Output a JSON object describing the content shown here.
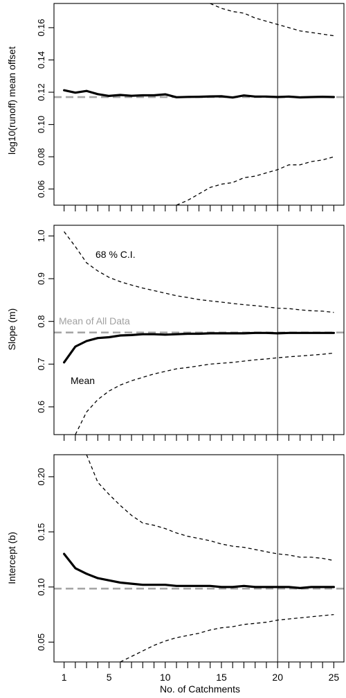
{
  "chart_data": [
    {
      "type": "line",
      "ylabel": "log10(runoff) mean offset",
      "ylim": [
        0.05,
        0.175
      ],
      "yticks": [
        0.06,
        0.08,
        0.1,
        0.12,
        0.14,
        0.16
      ],
      "ytick_labels": [
        "0.06",
        "0.08",
        "0.10",
        "0.12",
        "0.14",
        "0.16"
      ],
      "reference_value": 0.117,
      "vline_x": 20,
      "series": [
        {
          "role": "mean",
          "style": "solid-thick",
          "x": [
            1,
            2,
            3,
            4,
            5,
            6,
            7,
            8,
            9,
            10,
            11,
            12,
            13,
            14,
            15,
            16,
            17,
            18,
            19,
            20,
            21,
            22,
            23,
            24,
            25
          ],
          "y": [
            0.1212,
            0.1197,
            0.1208,
            0.1188,
            0.1177,
            0.1183,
            0.1178,
            0.1181,
            0.1181,
            0.1187,
            0.1169,
            0.1171,
            0.1172,
            0.1174,
            0.1175,
            0.1167,
            0.118,
            0.1173,
            0.1173,
            0.117,
            0.1173,
            0.1168,
            0.117,
            0.1172,
            0.117
          ]
        },
        {
          "role": "upper",
          "style": "dashed",
          "x": [
            14,
            15,
            16,
            17,
            18,
            19,
            20,
            21,
            22,
            23,
            24,
            25
          ],
          "y": [
            0.175,
            0.172,
            0.17,
            0.169,
            0.166,
            0.164,
            0.162,
            0.16,
            0.158,
            0.157,
            0.156,
            0.155
          ]
        },
        {
          "role": "lower",
          "style": "dashed",
          "x": [
            11,
            12,
            13,
            14,
            15,
            16,
            17,
            18,
            19,
            20,
            21,
            22,
            23,
            24,
            25
          ],
          "y": [
            0.05,
            0.053,
            0.057,
            0.061,
            0.063,
            0.064,
            0.067,
            0.068,
            0.07,
            0.072,
            0.075,
            0.075,
            0.077,
            0.078,
            0.08
          ]
        }
      ]
    },
    {
      "type": "line",
      "ylabel": "Slope (m)",
      "ylim": [
        0.535,
        1.025
      ],
      "yticks": [
        0.6,
        0.7,
        0.8,
        0.9,
        1.0
      ],
      "ytick_labels": [
        "0.6",
        "0.7",
        "0.8",
        "0.9",
        "1.0"
      ],
      "reference_value": 0.774,
      "reference_label": "Mean of All Data",
      "ci_label": "68 % C.I.",
      "mean_label": "Mean",
      "vline_x": 20,
      "series": [
        {
          "role": "mean",
          "style": "solid-thick",
          "x": [
            1,
            2,
            3,
            4,
            5,
            6,
            7,
            8,
            9,
            10,
            11,
            12,
            13,
            14,
            15,
            16,
            17,
            18,
            19,
            20,
            21,
            22,
            23,
            24,
            25
          ],
          "y": [
            0.704,
            0.741,
            0.754,
            0.761,
            0.763,
            0.767,
            0.768,
            0.77,
            0.77,
            0.769,
            0.77,
            0.771,
            0.771,
            0.772,
            0.772,
            0.772,
            0.772,
            0.773,
            0.773,
            0.772,
            0.773,
            0.773,
            0.773,
            0.773,
            0.773
          ]
        },
        {
          "role": "upper",
          "style": "dashed",
          "x": [
            1,
            2,
            3,
            4,
            5,
            6,
            7,
            8,
            9,
            10,
            11,
            12,
            13,
            14,
            15,
            16,
            17,
            18,
            19,
            20,
            21,
            22,
            23,
            24,
            25
          ],
          "y": [
            1.01,
            0.975,
            0.937,
            0.918,
            0.903,
            0.893,
            0.885,
            0.878,
            0.872,
            0.866,
            0.86,
            0.856,
            0.851,
            0.848,
            0.845,
            0.842,
            0.839,
            0.837,
            0.834,
            0.831,
            0.83,
            0.827,
            0.825,
            0.824,
            0.821
          ]
        },
        {
          "role": "lower",
          "style": "dashed",
          "x": [
            2,
            3,
            4,
            5,
            6,
            7,
            8,
            9,
            10,
            11,
            12,
            13,
            14,
            15,
            16,
            17,
            18,
            19,
            20,
            21,
            22,
            23,
            24,
            25
          ],
          "y": [
            0.535,
            0.588,
            0.617,
            0.637,
            0.651,
            0.661,
            0.669,
            0.677,
            0.683,
            0.689,
            0.692,
            0.696,
            0.7,
            0.702,
            0.704,
            0.707,
            0.71,
            0.712,
            0.715,
            0.717,
            0.719,
            0.721,
            0.723,
            0.726
          ]
        }
      ]
    },
    {
      "type": "line",
      "ylabel": "Intercept (b)",
      "ylim": [
        0.032,
        0.22
      ],
      "yticks": [
        0.05,
        0.1,
        0.15,
        0.2
      ],
      "ytick_labels": [
        "0.05",
        "0.10",
        "0.15",
        "0.20"
      ],
      "reference_value": 0.0985,
      "vline_x": 20,
      "xlabel": "No. of Catchments",
      "xticks": [
        1,
        5,
        10,
        15,
        20,
        25
      ],
      "xtick_labels": [
        "1",
        "5",
        "10",
        "15",
        "20",
        "25"
      ],
      "series": [
        {
          "role": "mean",
          "style": "solid-thick",
          "x": [
            1,
            2,
            3,
            4,
            5,
            6,
            7,
            8,
            9,
            10,
            11,
            12,
            13,
            14,
            15,
            16,
            17,
            18,
            19,
            20,
            21,
            22,
            23,
            24,
            25
          ],
          "y": [
            0.13,
            0.117,
            0.112,
            0.108,
            0.106,
            0.104,
            0.103,
            0.102,
            0.102,
            0.102,
            0.101,
            0.101,
            0.101,
            0.101,
            0.1,
            0.1,
            0.101,
            0.1,
            0.1,
            0.1,
            0.1,
            0.099,
            0.1,
            0.1,
            0.1
          ]
        },
        {
          "role": "upper",
          "style": "dashed",
          "x": [
            3,
            4,
            5,
            6,
            7,
            8,
            9,
            10,
            11,
            12,
            13,
            14,
            15,
            16,
            17,
            18,
            19,
            20,
            21,
            22,
            23,
            24,
            25
          ],
          "y": [
            0.22,
            0.195,
            0.184,
            0.174,
            0.165,
            0.158,
            0.156,
            0.153,
            0.149,
            0.146,
            0.144,
            0.142,
            0.139,
            0.137,
            0.136,
            0.134,
            0.132,
            0.13,
            0.129,
            0.127,
            0.127,
            0.126,
            0.124
          ]
        },
        {
          "role": "lower",
          "style": "dashed",
          "x": [
            6,
            7,
            8,
            9,
            10,
            11,
            12,
            13,
            14,
            15,
            16,
            17,
            18,
            19,
            20,
            21,
            22,
            23,
            24,
            25
          ],
          "y": [
            0.032,
            0.037,
            0.042,
            0.047,
            0.051,
            0.054,
            0.056,
            0.058,
            0.061,
            0.063,
            0.064,
            0.066,
            0.067,
            0.068,
            0.07,
            0.071,
            0.072,
            0.073,
            0.074,
            0.075
          ]
        }
      ]
    }
  ]
}
